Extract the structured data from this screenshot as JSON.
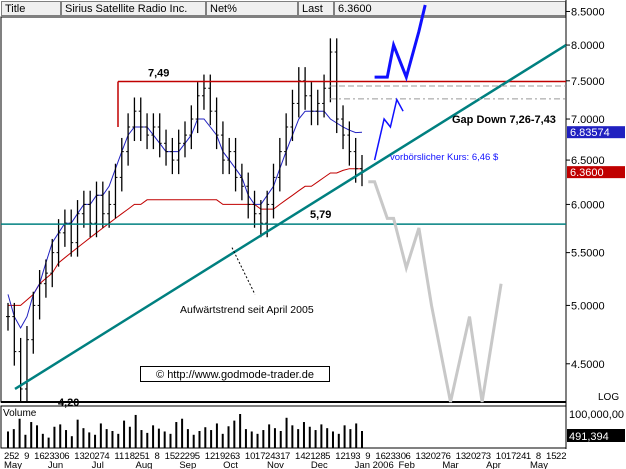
{
  "header": {
    "title_label": "Title",
    "title_value": "Sirius Satellite Radio Inc.",
    "net_label": "Net%",
    "last_label": "Last",
    "last_value": "6.3600"
  },
  "copyright": "© http://www.godmode-trader.de",
  "volume_label": "Volume",
  "scale_label": "LOG",
  "colors": {
    "price_bars": "#000000",
    "ma_short": "#2020c0",
    "ma_long": "#c00000",
    "trend_line": "#008080",
    "resistance_line": "#c00000",
    "forecast_blue": "#1010ff",
    "forecast_gray": "#c8c8c8",
    "last_price_box": "#c00000",
    "ma_value_box": "#2020c0"
  },
  "chart_data": [
    {
      "type": "line",
      "name": "price",
      "y_scale": "log",
      "ylim": [
        4.2,
        8.6
      ],
      "y_ticks": [
        "8.5000",
        "8.0000",
        "7.5000",
        "7.0000",
        "6.5000",
        "6.0000",
        "5.5000",
        "5.0000",
        "4.5000"
      ],
      "y_tick_values": [
        8.5,
        8.0,
        7.5,
        7.0,
        6.5,
        6.0,
        5.5,
        5.0,
        4.5
      ],
      "x_tick_labels": [
        "25",
        "2",
        "9",
        "16",
        "23",
        "30",
        "6",
        "13",
        "20",
        "27",
        "4",
        "11",
        "18",
        "25",
        "1",
        "8",
        "15",
        "22",
        "29",
        "5",
        "12",
        "19",
        "26",
        "3",
        "10",
        "17",
        "24",
        "31",
        "7",
        "14",
        "21",
        "28",
        "5",
        "12",
        "19",
        "3",
        "9",
        "16",
        "23",
        "30",
        "6",
        "13",
        "20",
        "27",
        "6",
        "13",
        "20",
        "27",
        "3",
        "10",
        "17",
        "24",
        "1",
        "8",
        "15",
        "22"
      ],
      "x_month_labels": [
        "May",
        "Jun",
        "Jul",
        "Aug",
        "Sep",
        "Oct",
        "Nov",
        "Dec",
        "Jan 2006",
        "Feb",
        "Mar",
        "Apr",
        "May"
      ],
      "right_value_labels": [
        {
          "text": "6.83574",
          "value": 6.83574,
          "role": "ma"
        },
        {
          "text": "6.3600",
          "value": 6.36,
          "role": "last"
        }
      ],
      "close_series": [
        4.9,
        4.6,
        4.3,
        4.7,
        5.0,
        5.2,
        5.3,
        5.5,
        5.7,
        5.8,
        5.6,
        5.9,
        6.0,
        5.8,
        6.1,
        5.9,
        6.0,
        6.3,
        6.6,
        6.9,
        7.1,
        6.9,
        6.8,
        6.9,
        6.7,
        6.6,
        6.5,
        6.7,
        6.8,
        7.0,
        7.3,
        7.4,
        7.1,
        6.8,
        6.5,
        6.6,
        6.3,
        6.2,
        6.0,
        5.9,
        5.8,
        6.0,
        6.3,
        6.6,
        6.9,
        7.2,
        7.5,
        7.3,
        7.1,
        7.2,
        7.4,
        7.9,
        7.0,
        6.8,
        6.6,
        6.4,
        6.36
      ],
      "ma_short_series": [
        5.1,
        4.9,
        4.8,
        4.9,
        5.1,
        5.2,
        5.4,
        5.6,
        5.7,
        5.8,
        5.8,
        5.9,
        6.0,
        6.0,
        6.1,
        6.1,
        6.2,
        6.4,
        6.6,
        6.8,
        6.9,
        6.9,
        6.9,
        6.8,
        6.7,
        6.6,
        6.6,
        6.6,
        6.7,
        6.8,
        7.0,
        7.0,
        6.9,
        6.8,
        6.6,
        6.5,
        6.4,
        6.3,
        6.1,
        6.0,
        6.0,
        6.1,
        6.2,
        6.4,
        6.6,
        6.8,
        7.0,
        7.1,
        7.1,
        7.1,
        7.1,
        7.0,
        6.95,
        6.9,
        6.86,
        6.83,
        6.83574
      ],
      "ma_long_series": [
        5.0,
        5.0,
        5.0,
        5.05,
        5.1,
        5.2,
        5.25,
        5.3,
        5.4,
        5.45,
        5.5,
        5.55,
        5.6,
        5.65,
        5.7,
        5.75,
        5.8,
        5.85,
        5.9,
        5.95,
        6.0,
        6.0,
        6.05,
        6.05,
        6.05,
        6.05,
        6.05,
        6.05,
        6.05,
        6.05,
        6.05,
        6.05,
        6.05,
        6.05,
        6.0,
        6.0,
        6.0,
        6.0,
        6.0,
        6.0,
        5.95,
        5.95,
        5.95,
        6.0,
        6.05,
        6.1,
        6.15,
        6.2,
        6.2,
        6.25,
        6.3,
        6.35,
        6.35,
        6.38,
        6.4,
        6.4,
        6.4
      ]
    },
    {
      "type": "bar",
      "name": "volume",
      "y_ticks": [
        "100,000,00",
        "491,394"
      ],
      "y_tick_values": [
        100000000,
        491394
      ],
      "values": [
        35,
        40,
        62,
        28,
        55,
        48,
        30,
        22,
        45,
        50,
        38,
        25,
        60,
        42,
        33,
        28,
        52,
        40,
        36,
        30,
        58,
        45,
        70,
        38,
        32,
        48,
        41,
        35,
        30,
        55,
        62,
        40,
        28,
        36,
        44,
        38,
        52,
        30,
        46,
        58,
        72,
        40,
        35,
        30,
        38,
        50,
        42,
        36,
        64,
        48,
        40,
        55,
        45,
        38,
        50,
        42,
        35,
        30,
        48,
        40,
        52,
        36
      ]
    }
  ],
  "annotations": {
    "resistance_label": "7,49",
    "support_label": "5,79",
    "low_label": "4,20",
    "gap_label": "Gap Down 7,26-7,43",
    "forecast_label": "vorbörslicher Kurs: 6,46 $",
    "trend_label": "Aufwärtstrend seit April 2005"
  }
}
